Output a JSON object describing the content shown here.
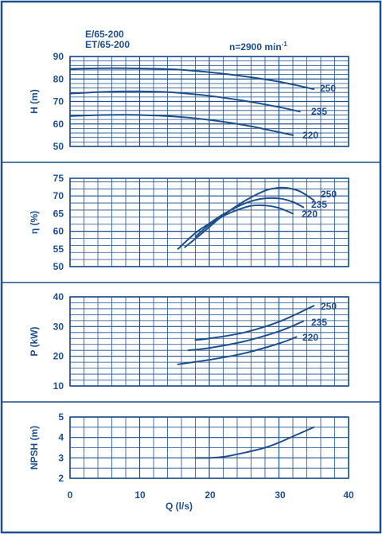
{
  "colors": {
    "ink": "#1f4e8c",
    "background": "#ffffff"
  },
  "header": {
    "models": [
      "E/65-200",
      "ET/65-200"
    ],
    "speed_prefix": "n=2900 min",
    "speed_exponent": "-1"
  },
  "x_axis": {
    "label": "Q (l/s)",
    "range": [
      0,
      40
    ],
    "ticks": [
      "0",
      "10",
      "20",
      "30",
      "40"
    ],
    "grid_step": 2
  },
  "chart_data": [
    {
      "type": "line",
      "ylabel": "H (m)",
      "ylim": [
        50,
        90
      ],
      "yticks": [
        "90",
        "80",
        "70",
        "60",
        "50"
      ],
      "series": [
        {
          "name": "250",
          "x": [
            0,
            5,
            10,
            15,
            20,
            25,
            30,
            35
          ],
          "y": [
            84.5,
            84.8,
            84.7,
            84.3,
            83.0,
            81.2,
            78.8,
            75.5
          ]
        },
        {
          "name": "235",
          "x": [
            0,
            5,
            10,
            15,
            20,
            25,
            30,
            33
          ],
          "y": [
            73.5,
            74.3,
            74.5,
            74.0,
            72.5,
            70.3,
            67.5,
            65.5
          ]
        },
        {
          "name": "220",
          "x": [
            0,
            5,
            10,
            15,
            20,
            25,
            29,
            32
          ],
          "y": [
            63.5,
            64.0,
            64.0,
            63.3,
            61.8,
            59.5,
            57.0,
            55.0
          ]
        }
      ]
    },
    {
      "type": "line",
      "ylabel": "η (%)",
      "ylim": [
        50,
        75
      ],
      "yticks": [
        "75",
        "70",
        "65",
        "60",
        "55",
        "50"
      ],
      "series": [
        {
          "name": "250",
          "x": [
            16.5,
            19,
            22,
            25,
            28,
            29.5,
            31,
            33,
            35
          ],
          "y": [
            55.5,
            59.5,
            64.5,
            68.5,
            71.5,
            72.2,
            72.3,
            71.3,
            68.8
          ]
        },
        {
          "name": "235",
          "x": [
            15.5,
            18,
            20,
            22,
            25,
            27.5,
            30,
            32,
            33.5
          ],
          "y": [
            55.0,
            59.5,
            62.2,
            64.8,
            67.8,
            69.2,
            69.3,
            68.3,
            66.8
          ]
        },
        {
          "name": "220",
          "x": [
            18,
            20,
            22,
            24,
            26,
            28,
            30,
            32
          ],
          "y": [
            58.5,
            61.8,
            64.3,
            66.0,
            67.2,
            67.3,
            66.6,
            65.0
          ]
        }
      ]
    },
    {
      "type": "line",
      "ylabel": "P (kW)",
      "ylim": [
        10,
        40
      ],
      "yticks": [
        "40",
        "30",
        "20",
        "10"
      ],
      "series": [
        {
          "name": "250",
          "x": [
            18,
            20,
            25,
            30,
            35
          ],
          "y": [
            25.5,
            26.0,
            28.0,
            31.6,
            37.0
          ]
        },
        {
          "name": "235",
          "x": [
            17,
            20,
            25,
            30,
            33.5
          ],
          "y": [
            22.0,
            22.8,
            25.0,
            28.4,
            31.8
          ]
        },
        {
          "name": "220",
          "x": [
            15.5,
            20,
            25,
            30,
            32.5
          ],
          "y": [
            17.3,
            18.8,
            21.0,
            24.3,
            26.5
          ]
        }
      ]
    },
    {
      "type": "line",
      "ylabel": "NPSH (m)",
      "ylim": [
        2,
        5
      ],
      "yticks": [
        "5",
        "4",
        "3",
        "2"
      ],
      "series": [
        {
          "name": "",
          "x": [
            18,
            20,
            22,
            25,
            28,
            30,
            32,
            35
          ],
          "y": [
            3.0,
            3.0,
            3.05,
            3.25,
            3.5,
            3.75,
            4.05,
            4.5
          ]
        }
      ]
    }
  ]
}
